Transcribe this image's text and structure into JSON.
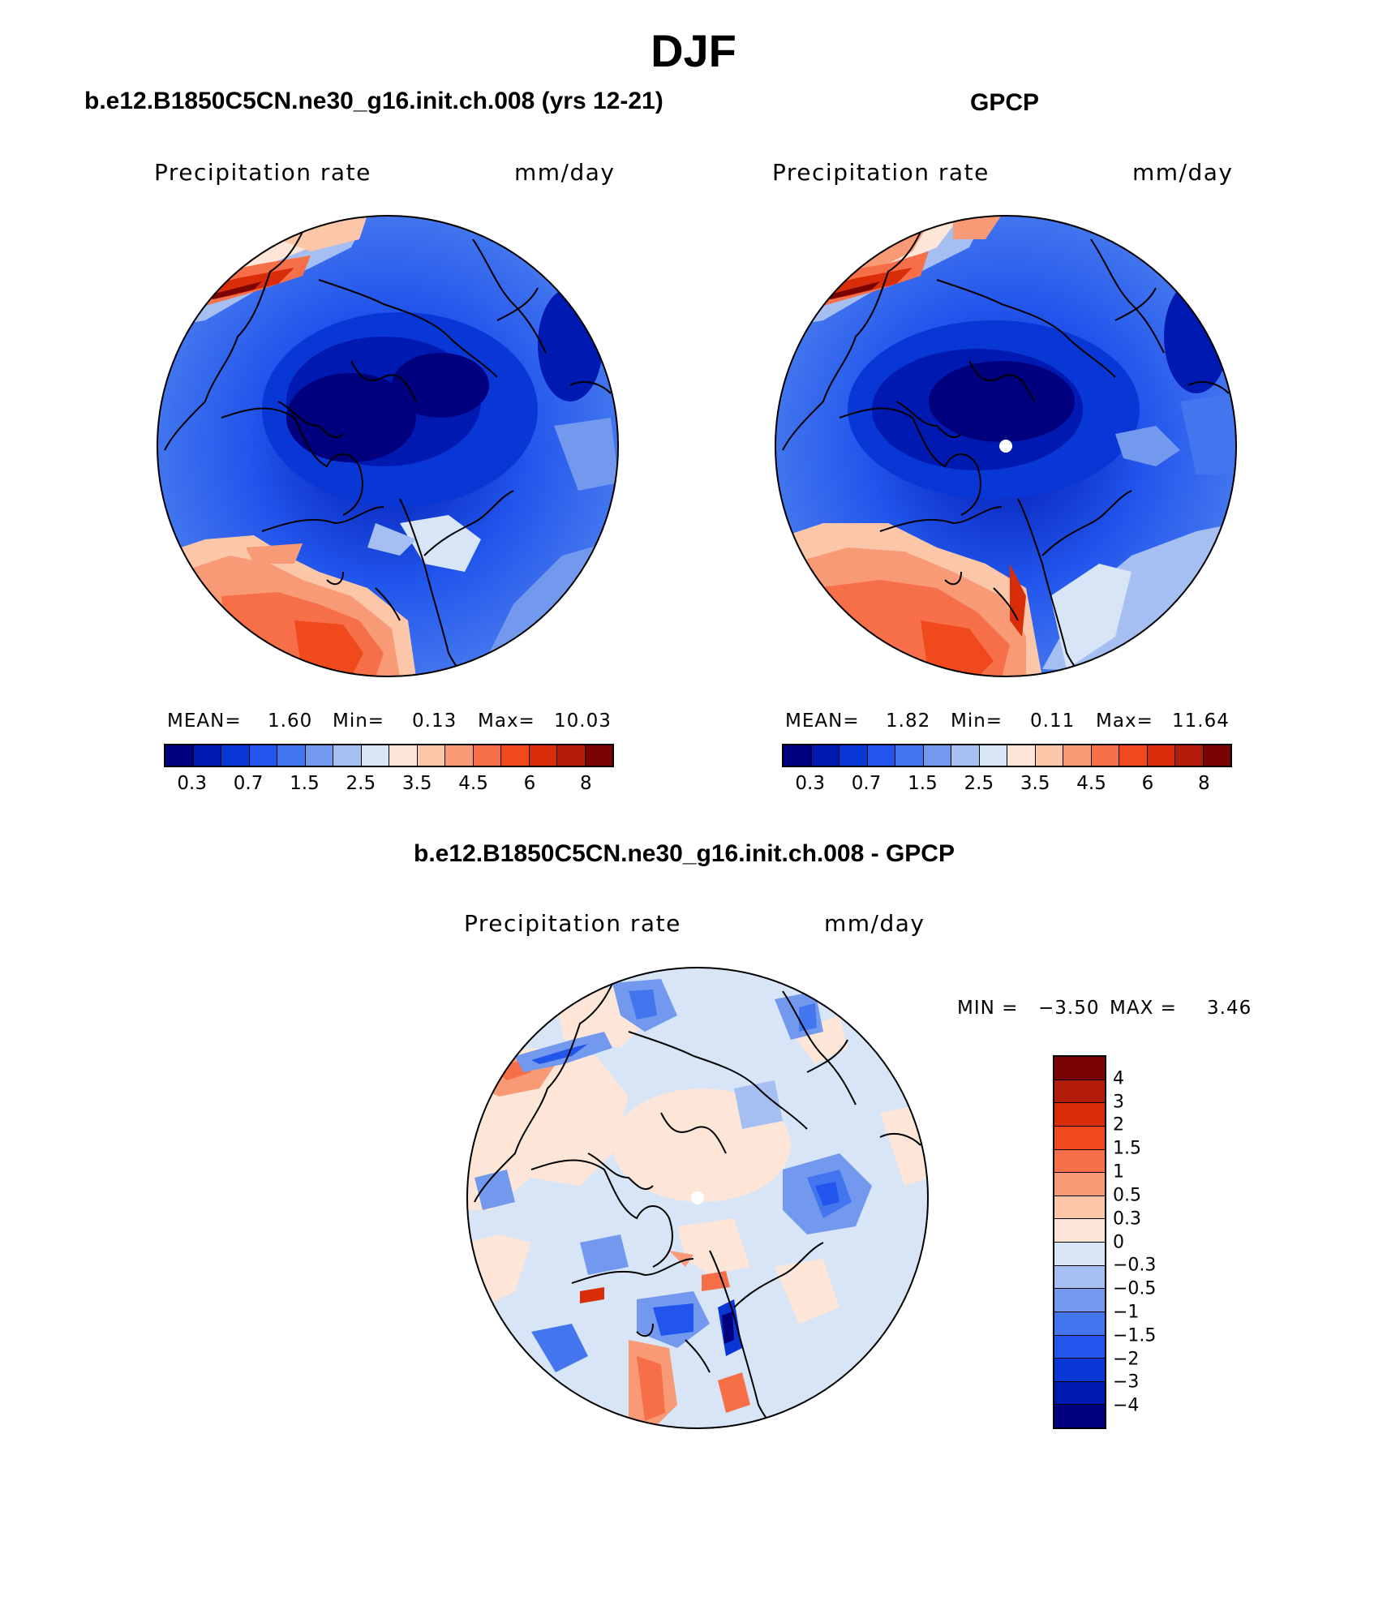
{
  "figure": {
    "title": "DJF"
  },
  "colors": {
    "precip_scale": [
      "#00007f",
      "#0019b0",
      "#0837d6",
      "#2255ec",
      "#4275ee",
      "#7399ef",
      "#a6bff2",
      "#d7e5f7",
      "#fde6d8",
      "#fcc6a8",
      "#f99a77",
      "#f76f48",
      "#f0491c",
      "#d92d09",
      "#b31c0a",
      "#7a0403"
    ],
    "diff_scale": [
      "#7a0403",
      "#b31c0a",
      "#d92d09",
      "#f0491c",
      "#f76f48",
      "#f99a77",
      "#fcc6a8",
      "#fde6d8",
      "#d7e5f7",
      "#a6bff2",
      "#7399ef",
      "#4275ee",
      "#2255ec",
      "#0837d6",
      "#0019b0",
      "#00007f"
    ]
  },
  "panels": {
    "model": {
      "title": "b.e12.B1850C5CN.ne30_g16.init.ch.008 (yrs 12-21)",
      "variable": "Precipitation  rate",
      "units": "mm/day",
      "stats": {
        "mean_label": "MEAN=",
        "mean": "1.60",
        "min_label": "Min=",
        "min": "0.13",
        "max_label": "Max=",
        "max": "10.03"
      }
    },
    "obs": {
      "title": "GPCP",
      "variable": "Precipitation  rate",
      "units": "mm/day",
      "stats": {
        "mean_label": "MEAN=",
        "mean": "1.82",
        "min_label": "Min=",
        "min": "0.11",
        "max_label": "Max=",
        "max": "11.64"
      }
    },
    "diff": {
      "title": "b.e12.B1850C5CN.ne30_g16.init.ch.008 - GPCP",
      "variable": "Precipitation  rate",
      "units": "mm/day",
      "stats": {
        "min_label": "MIN =",
        "min": "−3.50",
        "max_label": "MAX =",
        "max": "3.46"
      }
    }
  },
  "colorbar_labels": {
    "precip": [
      "0.3",
      "0.7",
      "1.5",
      "2.5",
      "3.5",
      "4.5",
      "6",
      "8"
    ],
    "diff": [
      "4",
      "3",
      "2",
      "1.5",
      "1",
      "0.5",
      "0.3",
      "0",
      "−0.3",
      "−0.5",
      "−1",
      "−1.5",
      "−2",
      "−3",
      "−4"
    ]
  }
}
